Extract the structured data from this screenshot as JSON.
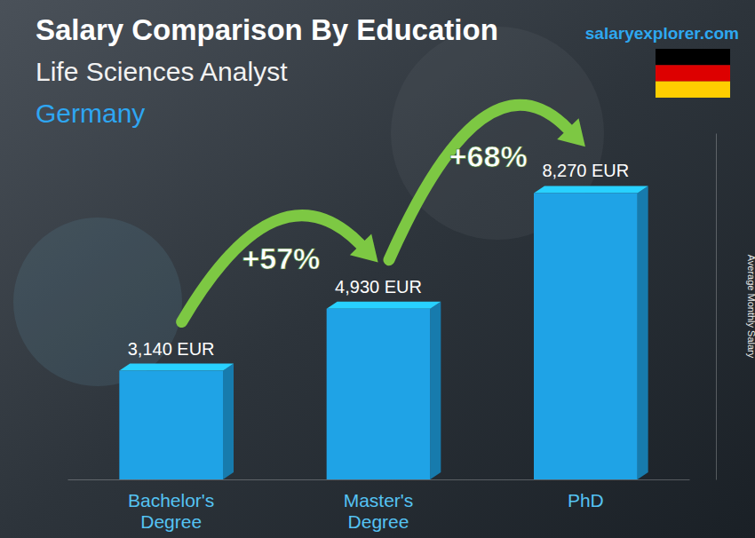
{
  "chart_data": {
    "type": "bar",
    "title": "Salary Comparison By Education",
    "subtitle": "Life Sciences Analyst",
    "country": "Germany",
    "source": "salaryexplorer.com",
    "y_label": "Average Monthly Salary",
    "categories": [
      "Bachelor's Degree",
      "Master's Degree",
      "PhD"
    ],
    "values": [
      3140,
      4930,
      8270
    ],
    "value_labels": [
      "3,140 EUR",
      "4,930 EUR",
      "8,270 EUR"
    ],
    "annotations": [
      "+57%",
      "+68%"
    ],
    "color": "#1fa3e6",
    "ylim": [
      0,
      10000
    ],
    "data_labels": true,
    "tick_labels": false,
    "grid": false
  }
}
